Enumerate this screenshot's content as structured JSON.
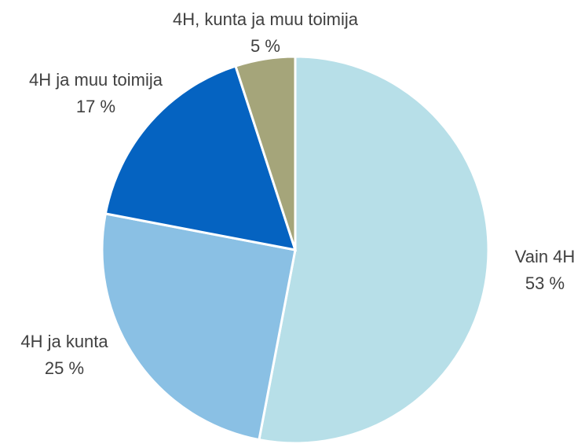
{
  "chart_data": {
    "type": "pie",
    "categories": [
      "Vain 4H",
      "4H ja kunta",
      "4H ja muu toimija",
      "4H, kunta ja muu toimija"
    ],
    "values": [
      53,
      25,
      17,
      5
    ],
    "value_labels": [
      "53 %",
      "25 %",
      "17 %",
      "5 %"
    ],
    "colors": [
      "#b7dfe8",
      "#8ac0e4",
      "#0563c1",
      "#a5a57a"
    ]
  }
}
